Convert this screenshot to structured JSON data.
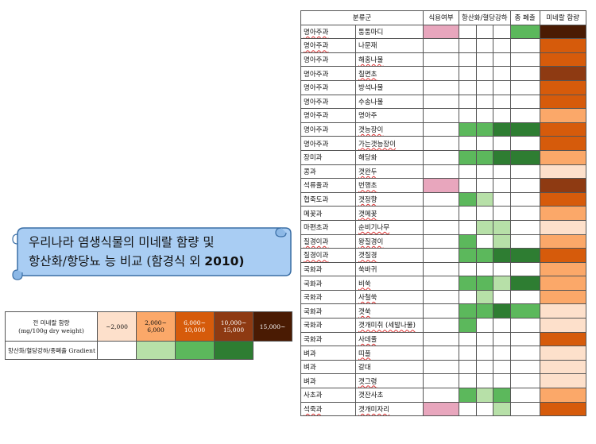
{
  "title": {
    "line1": "우리나라 염생식물의 미네랄 함량 및",
    "line2": "항산화/항당뇨 능 비교 (함경식 외 ",
    "line2_bold": "2010)"
  },
  "table": {
    "headers": {
      "category": "분류군",
      "edibility": "식용여부",
      "antioxidant": "항산화/혈당강하",
      "cytotoxicity": "종 폐출",
      "mineral": "미네랄 함량"
    },
    "rows": [
      {
        "family": "명아주과",
        "name": "퉁퉁마디",
        "food": "#e8a6bd",
        "ao": [
          "",
          "",
          ""
        ],
        "cyto": "#5cb85c",
        "mineral": "#4a1b03",
        "fu": true,
        "nu": false
      },
      {
        "family": "명아주과",
        "name": "나문재",
        "food": "",
        "ao": [
          "",
          "",
          ""
        ],
        "cyto": "",
        "mineral": "#d65b0b",
        "fu": true,
        "nu": false
      },
      {
        "family": "명아주과",
        "name": "해홍나물",
        "food": "",
        "ao": [
          "",
          "",
          ""
        ],
        "cyto": "",
        "mineral": "#d65b0b",
        "fu": false,
        "nu": true
      },
      {
        "family": "명아주과",
        "name": "칠면초",
        "food": "",
        "ao": [
          "",
          "",
          ""
        ],
        "cyto": "",
        "mineral": "#8e3a12",
        "fu": false,
        "nu": true
      },
      {
        "family": "명아주과",
        "name": "방석나물",
        "food": "",
        "ao": [
          "",
          "",
          ""
        ],
        "cyto": "",
        "mineral": "#d65b0b",
        "fu": false,
        "nu": false
      },
      {
        "family": "명아주과",
        "name": "수송나물",
        "food": "",
        "ao": [
          "",
          "",
          ""
        ],
        "cyto": "",
        "mineral": "#d65b0b",
        "fu": false,
        "nu": false
      },
      {
        "family": "명아주과",
        "name": "명아주",
        "food": "",
        "ao": [
          "",
          "",
          ""
        ],
        "cyto": "",
        "mineral": "#fba869",
        "fu": false,
        "nu": false
      },
      {
        "family": "명아주과",
        "name": "갯능장이",
        "food": "",
        "ao": [
          "#5cb85c",
          "#5cb85c",
          "#2e7d32"
        ],
        "cyto": "#2e7d32",
        "mineral": "#d65b0b",
        "fu": false,
        "nu": true
      },
      {
        "family": "명아주과",
        "name": "가는갯능장이",
        "food": "",
        "ao": [
          "",
          "",
          ""
        ],
        "cyto": "",
        "mineral": "#d65b0b",
        "fu": false,
        "nu": true
      },
      {
        "family": "장미과",
        "name": "해당화",
        "food": "",
        "ao": [
          "#5cb85c",
          "#5cb85c",
          "#2e7d32"
        ],
        "cyto": "#2e7d32",
        "mineral": "#fba869",
        "fu": false,
        "nu": false
      },
      {
        "family": "콩과",
        "name": "갯완두",
        "food": "",
        "ao": [
          "",
          "",
          ""
        ],
        "cyto": "",
        "mineral": "#fde0cb",
        "fu": false,
        "nu": true
      },
      {
        "family": "석류풀과",
        "name": "번행초",
        "food": "#e8a6bd",
        "ao": [
          "",
          "",
          ""
        ],
        "cyto": "",
        "mineral": "#8e3a12",
        "fu": false,
        "nu": true
      },
      {
        "family": "협죽도과",
        "name": "갯정향",
        "food": "",
        "ao": [
          "#5cb85c",
          "#b7e0a8",
          ""
        ],
        "cyto": "",
        "mineral": "#d65b0b",
        "fu": false,
        "nu": true
      },
      {
        "family": "메꽃과",
        "name": "갯메꽃",
        "food": "",
        "ao": [
          "",
          "",
          ""
        ],
        "cyto": "",
        "mineral": "#fba869",
        "fu": false,
        "nu": true
      },
      {
        "family": "마편초과",
        "name": "순비기나무",
        "food": "",
        "ao": [
          "",
          "#b7e0a8",
          "#b7e0a8"
        ],
        "cyto": "",
        "mineral": "#fde0cb",
        "fu": false,
        "nu": true
      },
      {
        "family": "질경이과",
        "name": "왕질경이",
        "food": "",
        "ao": [
          "#5cb85c",
          "",
          "#b7e0a8"
        ],
        "cyto": "",
        "mineral": "#fba869",
        "fu": true,
        "nu": true
      },
      {
        "family": "질경이과",
        "name": "갯질경",
        "food": "",
        "ao": [
          "#5cb85c",
          "#5cb85c",
          "#2e7d32"
        ],
        "cyto": "#2e7d32",
        "mineral": "#d65b0b",
        "fu": true,
        "nu": true
      },
      {
        "family": "국화과",
        "name": "쑥바귀",
        "food": "",
        "ao": [
          "",
          "",
          ""
        ],
        "cyto": "",
        "mineral": "#fba869",
        "fu": false,
        "nu": false
      },
      {
        "family": "국화과",
        "name": "비쑥",
        "food": "",
        "ao": [
          "#5cb85c",
          "#5cb85c",
          "#b7e0a8"
        ],
        "cyto": "#2e7d32",
        "mineral": "#fba869",
        "fu": false,
        "nu": true
      },
      {
        "family": "국화과",
        "name": "사철쑥",
        "food": "",
        "ao": [
          "",
          "#b7e0a8",
          ""
        ],
        "cyto": "",
        "mineral": "#fba869",
        "fu": false,
        "nu": true
      },
      {
        "family": "국화과",
        "name": "갯쑥",
        "food": "",
        "ao": [
          "#5cb85c",
          "#5cb85c",
          "#2e7d32"
        ],
        "cyto": "#5cb85c",
        "mineral": "#fde0cb",
        "fu": false,
        "nu": true
      },
      {
        "family": "국화과",
        "name": "갯개미취 (세발나물)",
        "food": "",
        "ao": [
          "#5cb85c",
          "",
          ""
        ],
        "cyto": "",
        "mineral": "#fde0cb",
        "fu": false,
        "nu": true
      },
      {
        "family": "국화과",
        "name": "사데풀",
        "food": "",
        "ao": [
          "",
          "",
          ""
        ],
        "cyto": "",
        "mineral": "#d65b0b",
        "fu": false,
        "nu": true
      },
      {
        "family": "벼과",
        "name": "띠풀",
        "food": "",
        "ao": [
          "",
          "",
          ""
        ],
        "cyto": "",
        "mineral": "#fde0cb",
        "fu": false,
        "nu": true
      },
      {
        "family": "벼과",
        "name": "갈대",
        "food": "",
        "ao": [
          "",
          "",
          ""
        ],
        "cyto": "",
        "mineral": "#fde0cb",
        "fu": false,
        "nu": false
      },
      {
        "family": "벼과",
        "name": "갯그령",
        "food": "",
        "ao": [
          "",
          "",
          ""
        ],
        "cyto": "",
        "mineral": "#fde0cb",
        "fu": false,
        "nu": true
      },
      {
        "family": "사초과",
        "name": "갯잔사초",
        "food": "",
        "ao": [
          "#5cb85c",
          "#b7e0a8",
          "#5cb85c"
        ],
        "cyto": "",
        "mineral": "#fba869",
        "fu": false,
        "nu": false
      },
      {
        "family": "석죽과",
        "name": "갯개미자리",
        "food": "#e8a6bd",
        "ao": [
          "",
          "",
          "#b7e0a8"
        ],
        "cyto": "",
        "mineral": "#d65b0b",
        "fu": true,
        "nu": true
      }
    ]
  },
  "legend": {
    "header_line1": "전 미네랄 함량",
    "header_line2": "(mg/100g dry weight)",
    "bins": [
      {
        "label1": "~2,000",
        "label2": "",
        "color": "#fde0cb",
        "text_color": "#111"
      },
      {
        "label1": "2,000~",
        "label2": "6,000",
        "color": "#fba869",
        "text_color": "#111"
      },
      {
        "label1": "6,000~",
        "label2": "10,000",
        "color": "#d65b0b",
        "text_color": "#fff"
      },
      {
        "label1": "10,000~",
        "label2": "15,000",
        "color": "#8e3a12",
        "text_color": "#fff"
      },
      {
        "label1": "15,000~",
        "label2": "",
        "color": "#4a1b03",
        "text_color": "#fff"
      }
    ],
    "gradient_label": "항산화/혈당강하/종폐출 Gradient",
    "gradient_colors": [
      "#ffffff",
      "#b7e0a8",
      "#5cb85c",
      "#2e7d32"
    ]
  }
}
